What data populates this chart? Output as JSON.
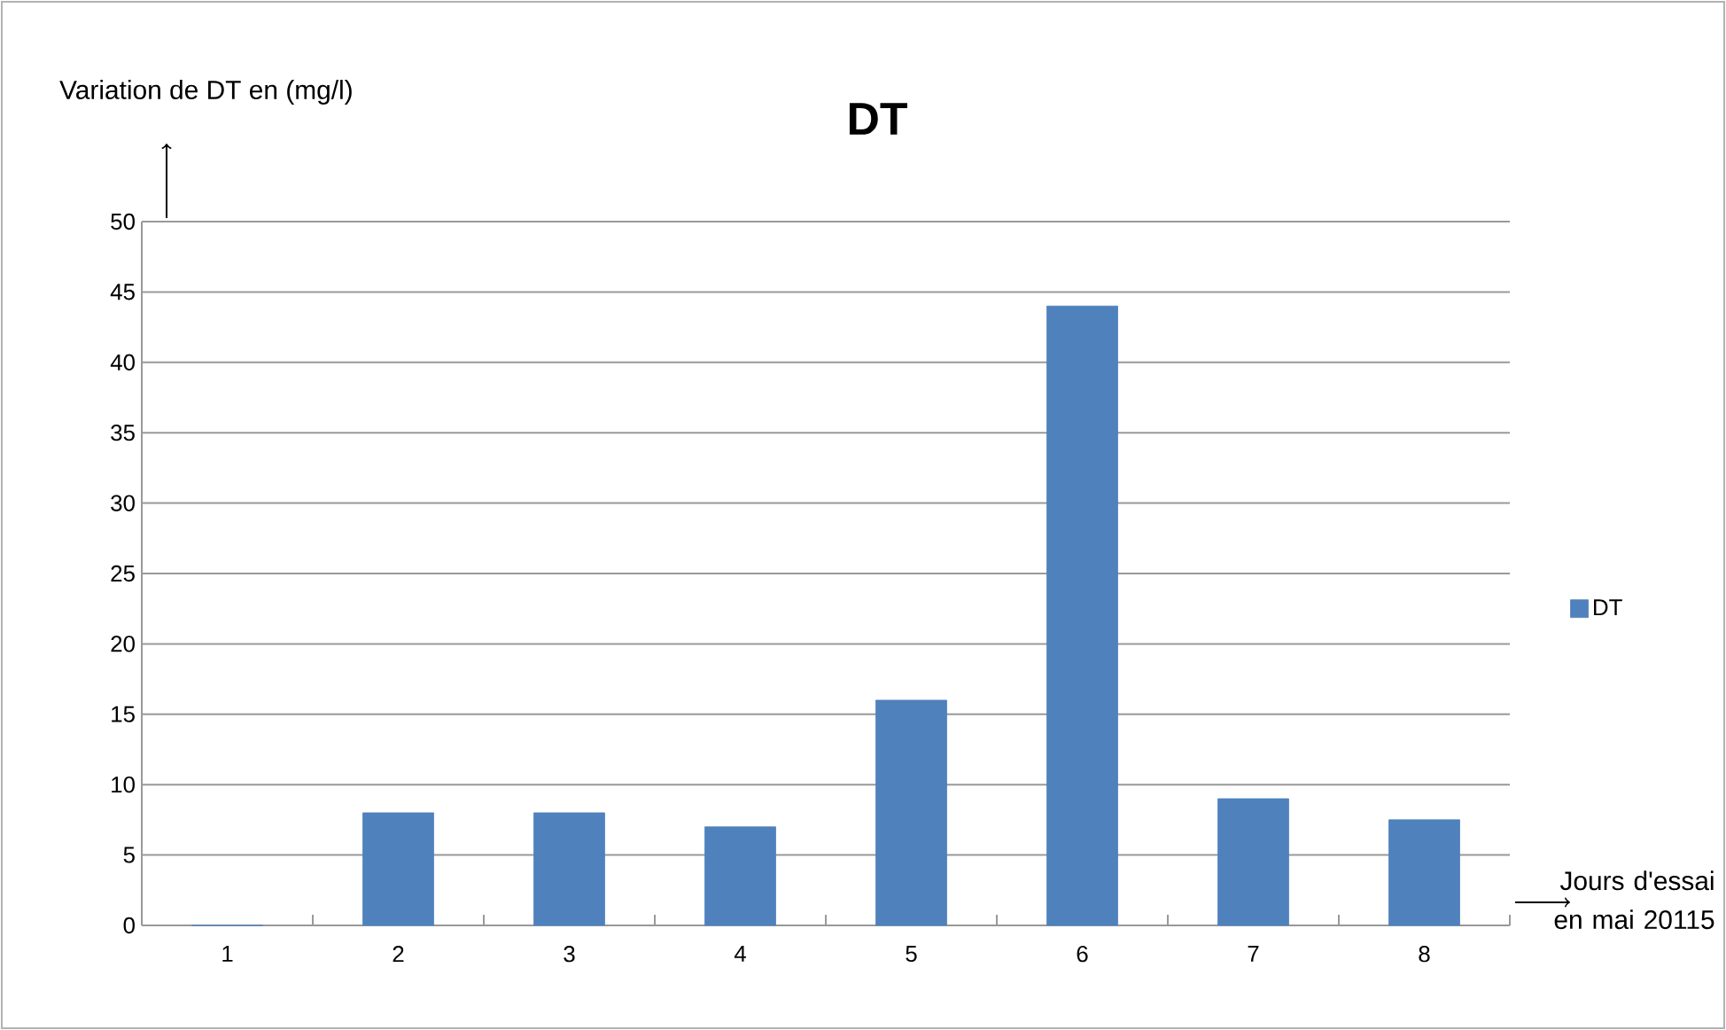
{
  "chart_data": {
    "type": "bar",
    "title": "DT",
    "ylabel": "Variation de DT en (mg/l)",
    "xlabel": "Jours d'essai en mai 20115",
    "categories": [
      "1",
      "2",
      "3",
      "4",
      "5",
      "6",
      "7",
      "8"
    ],
    "series": [
      {
        "name": "DT",
        "color": "#4f81bd",
        "values": [
          0,
          8,
          8,
          7,
          16,
          44,
          9,
          7.5
        ]
      }
    ],
    "ylim": [
      0,
      50
    ],
    "yticks": [
      0,
      5,
      10,
      15,
      20,
      25,
      30,
      35,
      40,
      45,
      50
    ],
    "grid": "y",
    "legend": "right"
  }
}
